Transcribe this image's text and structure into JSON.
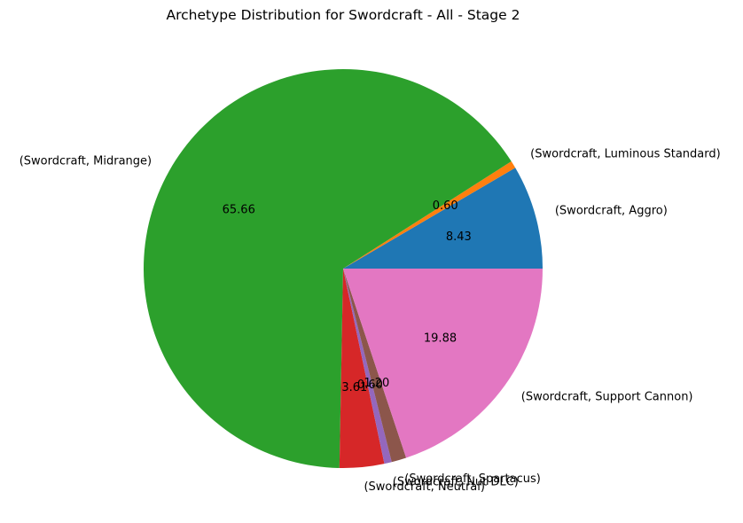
{
  "chart_data": {
    "type": "pie",
    "title": "Archetype Distribution for Swordcraft - All - Stage 2",
    "slices": [
      {
        "label": "(Swordcraft, Aggro)",
        "value": 8.43,
        "display": "8.43",
        "color": "#1f77b4"
      },
      {
        "label": "(Swordcraft, Luminous Standard)",
        "value": 0.6,
        "display": "0.60",
        "color": "#ff7f0e"
      },
      {
        "label": "(Swordcraft, Midrange)",
        "value": 65.66,
        "display": "65.66",
        "color": "#2ca02c"
      },
      {
        "label": "(Swordcraft, Neutral)",
        "value": 3.61,
        "display": "3.61",
        "color": "#d62728"
      },
      {
        "label": "(Swordcraft, Nut DLC)",
        "value": 0.6,
        "display": "0.60",
        "color": "#9467bd"
      },
      {
        "label": "(Swordcraft, Spartacus)",
        "value": 1.2,
        "display": "1.20",
        "color": "#8c564b"
      },
      {
        "label": "(Swordcraft, Support Cannon)",
        "value": 19.88,
        "display": "19.88",
        "color": "#e377c2"
      }
    ],
    "start_angle": 0,
    "direction": "counterclockwise",
    "legend": "none"
  }
}
